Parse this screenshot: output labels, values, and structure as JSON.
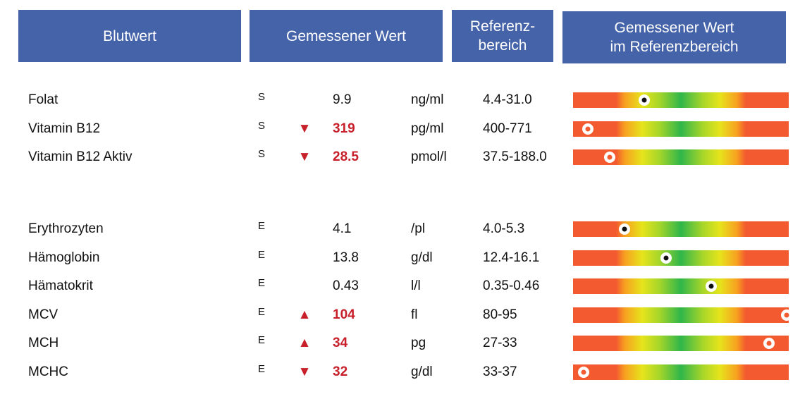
{
  "headers": {
    "blutwert": "Blutwert",
    "gemessener_wert": "Gemessener Wert",
    "referenz_line1": "Referenz-",
    "referenz_line2": "bereich",
    "bar_line1": "Gemessener Wert",
    "bar_line2": "im Referenzbereich"
  },
  "colors": {
    "header_bg": "#4563a8",
    "abnormal": "#c8202a",
    "bar_low_high": "#f35a2f",
    "bar_mid": "#2fb54a",
    "bar_edge": "#e6e41c"
  },
  "groups": [
    {
      "rows": [
        {
          "name": "Folat",
          "material": "S",
          "flag": "",
          "value": "9.9",
          "unit": "ng/ml",
          "ref": "4.4-31.0",
          "abnormal": false,
          "position": 0.33
        },
        {
          "name": "Vitamin B12",
          "material": "S",
          "flag": "▼",
          "value": "319",
          "unit": "pg/ml",
          "ref": "400-771",
          "abnormal": true,
          "position": 0.07
        },
        {
          "name": "Vitamin B12 Aktiv",
          "material": "S",
          "flag": "▼",
          "value": "28.5",
          "unit": "pmol/l",
          "ref": "37.5-188.0",
          "abnormal": true,
          "position": 0.17
        }
      ]
    },
    {
      "rows": [
        {
          "name": "Erythrozyten",
          "material": "E",
          "flag": "",
          "value": "4.1",
          "unit": "/pl",
          "ref": "4.0-5.3",
          "abnormal": false,
          "position": 0.24
        },
        {
          "name": "Hämoglobin",
          "material": "E",
          "flag": "",
          "value": "13.8",
          "unit": "g/dl",
          "ref": "12.4-16.1",
          "abnormal": false,
          "position": 0.43
        },
        {
          "name": "Hämatokrit",
          "material": "E",
          "flag": "",
          "value": "0.43",
          "unit": "l/l",
          "ref": "0.35-0.46",
          "abnormal": false,
          "position": 0.64
        },
        {
          "name": "MCV",
          "material": "E",
          "flag": "▲",
          "value": "104",
          "unit": "fl",
          "ref": "80-95",
          "abnormal": true,
          "position": 0.99
        },
        {
          "name": "MCH",
          "material": "E",
          "flag": "▲",
          "value": "34",
          "unit": "pg",
          "ref": "27-33",
          "abnormal": true,
          "position": 0.91
        },
        {
          "name": "MCHC",
          "material": "E",
          "flag": "▼",
          "value": "32",
          "unit": "g/dl",
          "ref": "33-37",
          "abnormal": true,
          "position": 0.05
        }
      ]
    }
  ]
}
